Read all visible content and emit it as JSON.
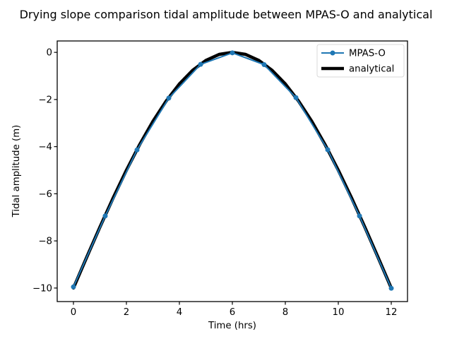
{
  "chart_data": {
    "type": "line",
    "title": "Drying slope comparison tidal amplitude between MPAS-O and analytical",
    "xlabel": "Time (hrs)",
    "ylabel": "Tidal amplitude (m)",
    "xlim": [
      -0.613,
      12.613
    ],
    "ylim": [
      -10.574,
      0.484
    ],
    "x_ticks": [
      0,
      2,
      4,
      6,
      8,
      10,
      12
    ],
    "x_tick_labels": [
      "0",
      "2",
      "4",
      "6",
      "8",
      "10",
      "12"
    ],
    "y_ticks": [
      0,
      -2,
      -4,
      -6,
      -8,
      -10
    ],
    "y_tick_labels": [
      "0",
      "−2",
      "−4",
      "−6",
      "−8",
      "−10"
    ],
    "grid": false,
    "legend_position": "upper right",
    "colors": {
      "mpas_o": "#1f77b4",
      "analytical": "#000000",
      "legend_edge": "#d9d9d9"
    },
    "series": [
      {
        "name": "analytical",
        "style": "line",
        "color": "#000000",
        "line_width": 4.5,
        "x": [
          0,
          0.5,
          1.0,
          1.5,
          2.0,
          2.5,
          3.0,
          3.5,
          4.0,
          4.5,
          5.0,
          5.5,
          6.0,
          6.5,
          7.0,
          7.5,
          8.0,
          8.5,
          9.0,
          9.5,
          10.0,
          10.5,
          11.0,
          11.5,
          12.0
        ],
        "y": [
          -10.0,
          -8.695,
          -7.412,
          -6.173,
          -5.0,
          -3.912,
          -2.929,
          -2.066,
          -1.34,
          -0.761,
          -0.341,
          -0.086,
          0.0,
          -0.086,
          -0.341,
          -0.761,
          -1.34,
          -2.066,
          -2.929,
          -3.912,
          -5.0,
          -6.173,
          -7.412,
          -8.695,
          -10.0
        ]
      },
      {
        "name": "MPAS-O",
        "style": "line+markers",
        "color": "#1f77b4",
        "line_width": 2,
        "marker": "circle",
        "marker_radius": 3.5,
        "x": [
          0,
          1.2,
          2.4,
          3.6,
          4.8,
          6.0,
          7.2,
          8.4,
          9.6,
          10.8,
          12.0
        ],
        "y": [
          -9.95,
          -6.94,
          -4.14,
          -1.94,
          -0.51,
          -0.02,
          -0.52,
          -1.92,
          -4.13,
          -6.94,
          -10.01
        ]
      }
    ]
  }
}
